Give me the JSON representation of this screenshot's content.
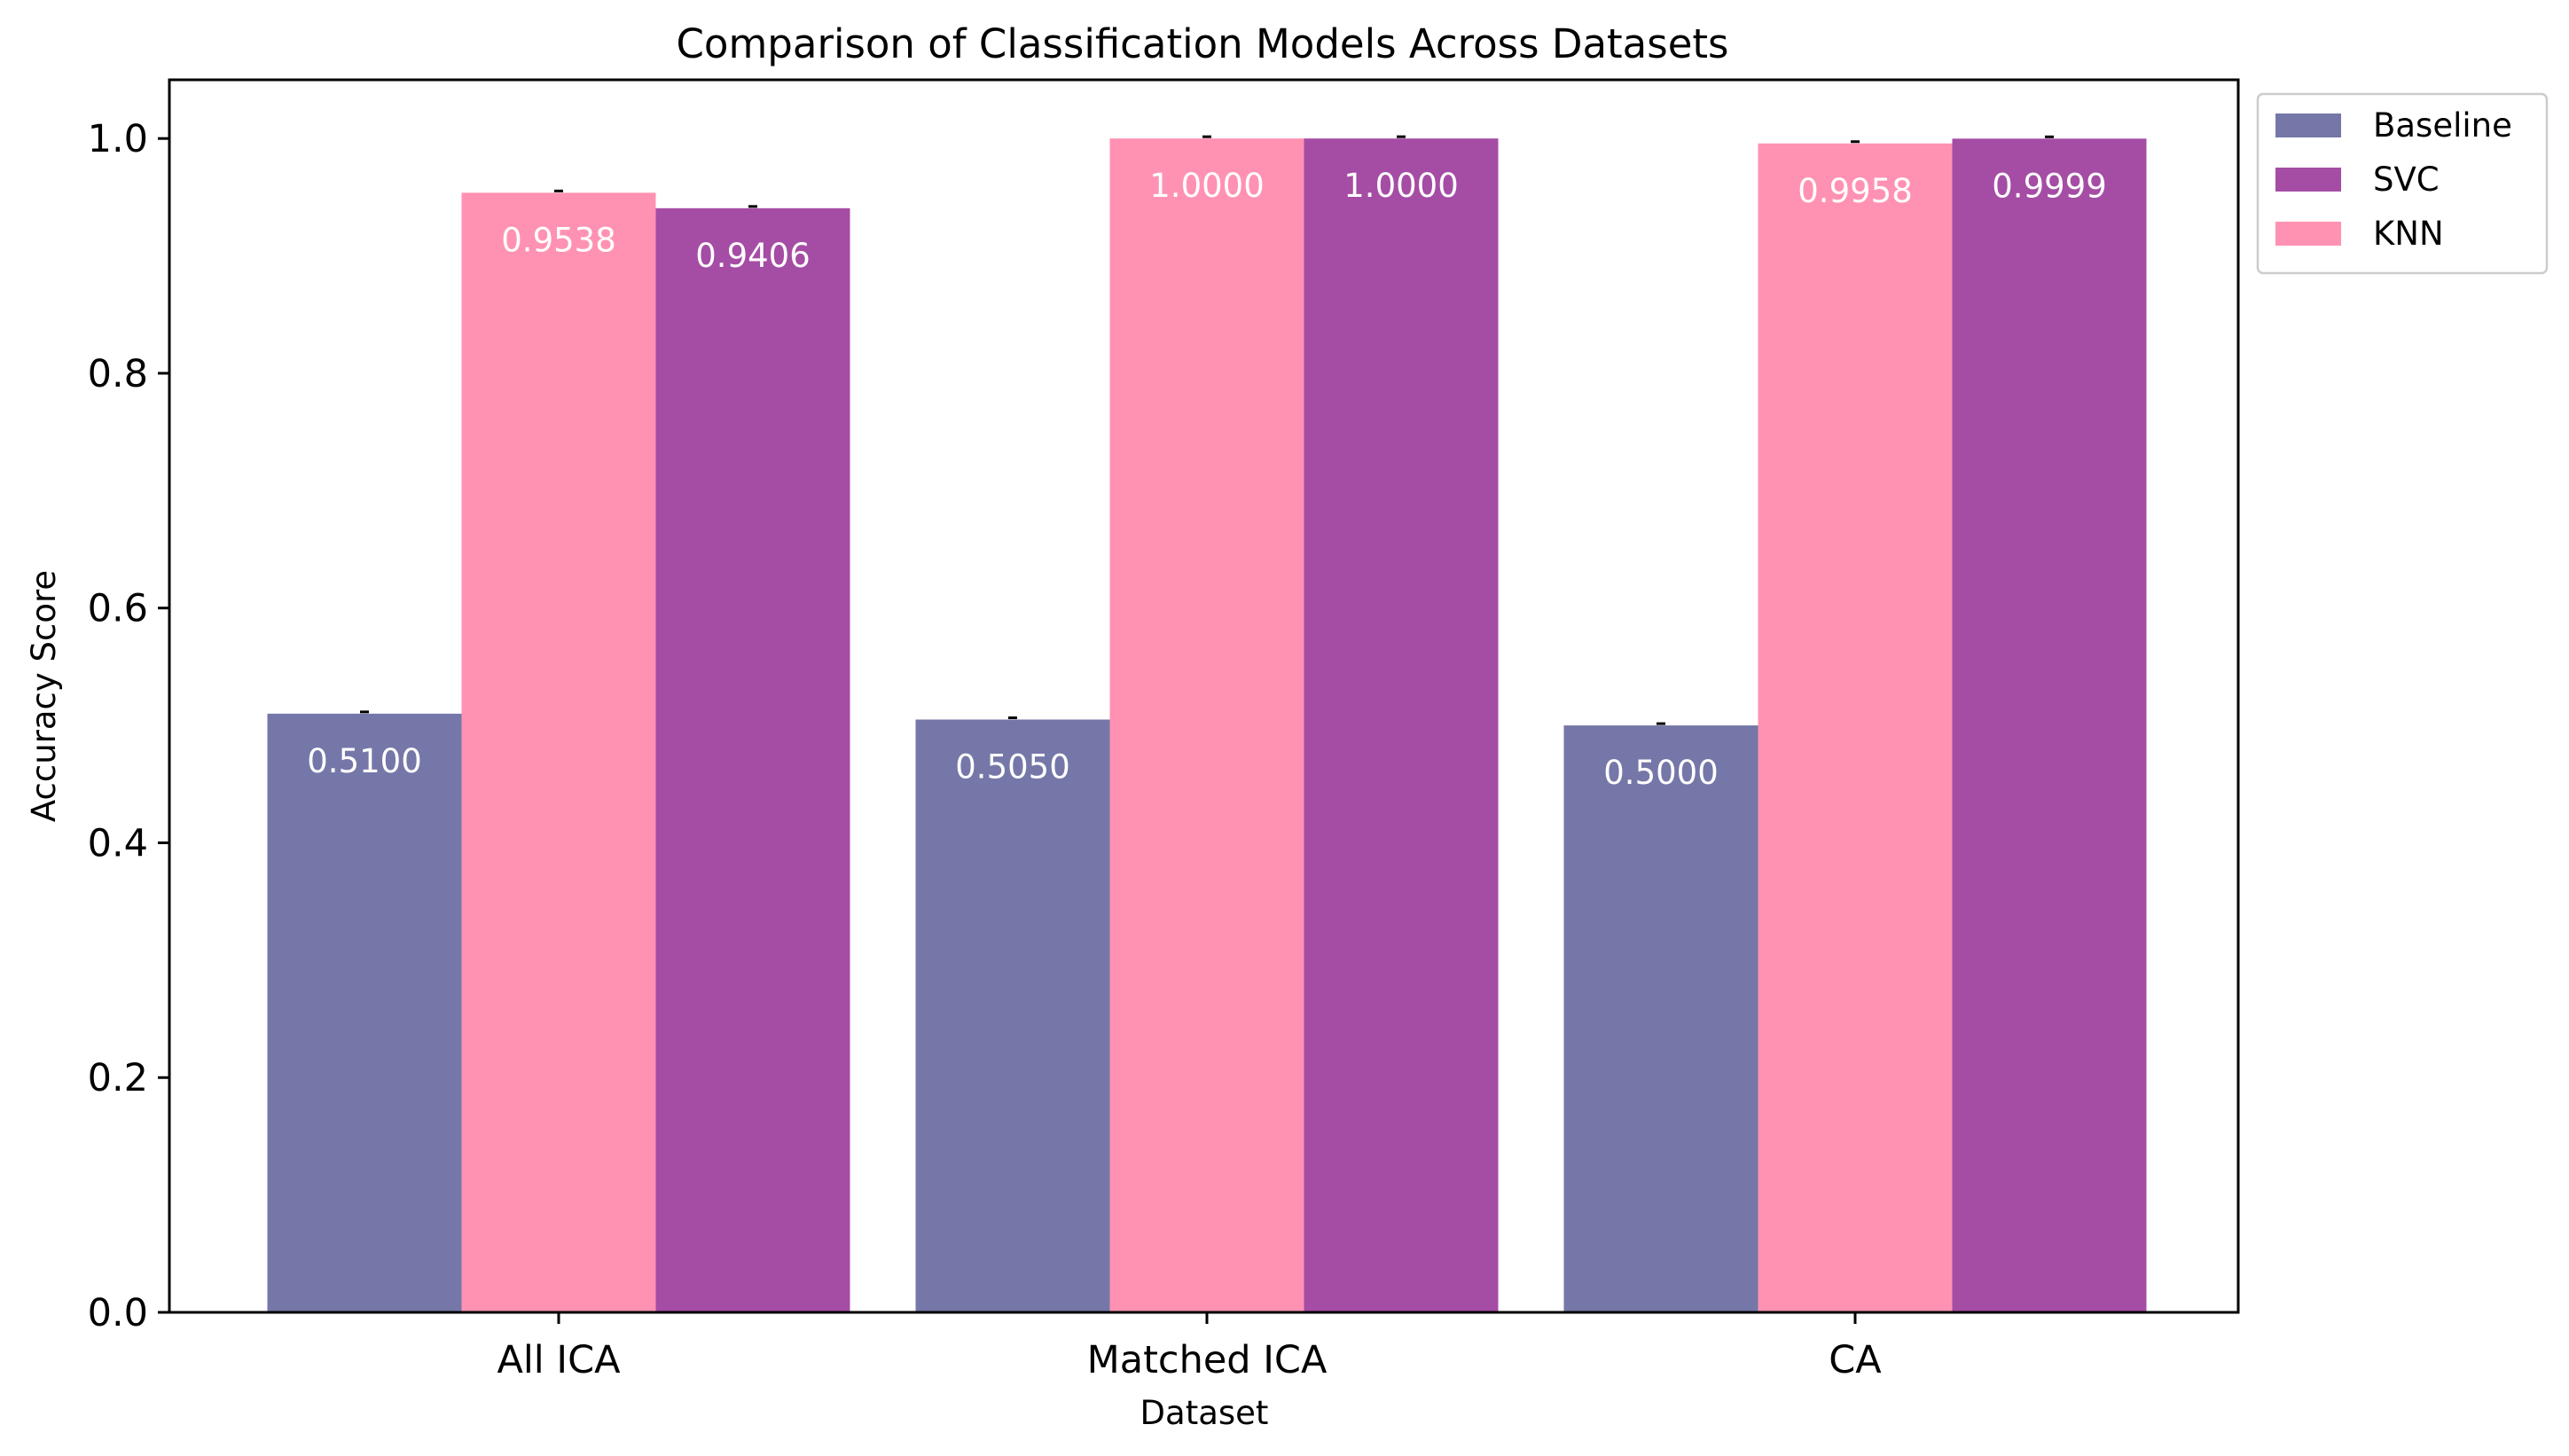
{
  "chart_data": {
    "type": "bar",
    "title": "Comparison of Classification Models Across Datasets",
    "xlabel": "Dataset",
    "ylabel": "Accuracy Score",
    "categories": [
      "All ICA",
      "Matched ICA",
      "CA"
    ],
    "ylim": [
      0,
      1.05
    ],
    "yticks": [
      0.0,
      0.2,
      0.4,
      0.6,
      0.8,
      1.0
    ],
    "ytick_labels": [
      "0.0",
      "0.2",
      "0.4",
      "0.6",
      "0.8",
      "1.0"
    ],
    "grid": false,
    "legend_position": "outside-top-right",
    "series": [
      {
        "name": "Baseline",
        "color": "#7577a8",
        "values": [
          0.51,
          0.505,
          0.5
        ],
        "value_labels": [
          "0.5100",
          "0.5050",
          "0.5000"
        ]
      },
      {
        "name": "KNN",
        "color": "#ff92b2",
        "values": [
          0.9538,
          1.0,
          0.9958
        ],
        "value_labels": [
          "0.9538",
          "1.0000",
          "0.9958"
        ]
      },
      {
        "name": "SVC",
        "color": "#a54ca5",
        "values": [
          0.9406,
          1.0,
          0.9999
        ],
        "value_labels": [
          "0.9406",
          "1.0000",
          "0.9999"
        ]
      }
    ],
    "legend_order": [
      "Baseline",
      "SVC",
      "KNN"
    ]
  }
}
